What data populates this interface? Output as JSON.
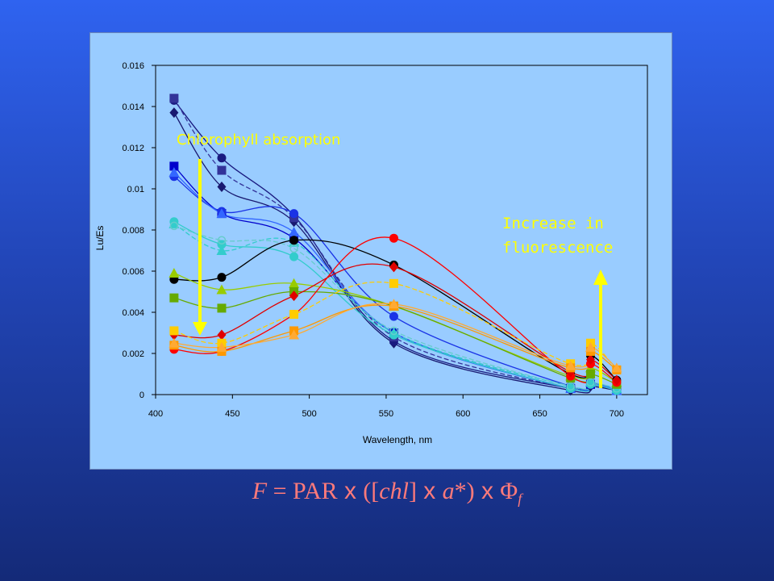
{
  "chart_data": {
    "type": "line",
    "xlabel": "Wavelength, nm",
    "ylabel": "Lu/Es",
    "xlim": [
      400,
      720
    ],
    "ylim": [
      0,
      0.016
    ],
    "xticks": [
      "400",
      "450",
      "500",
      "550",
      "600",
      "650",
      "700"
    ],
    "yticks": [
      "0",
      "0.002",
      "0.004",
      "0.006",
      "0.008",
      "0.01",
      "0.012",
      "0.014",
      "0.016"
    ],
    "grid": false,
    "legend": "none",
    "x": [
      412,
      443,
      490,
      555,
      670,
      683,
      700
    ],
    "series": [
      {
        "color": "#191970",
        "marker": "diamond",
        "dash": false,
        "values": [
          0.0137,
          0.0101,
          0.0084,
          0.0025,
          0.0002,
          0.0004,
          0.0002
        ]
      },
      {
        "color": "#1a1a80",
        "marker": "circle",
        "dash": false,
        "values": [
          0.0143,
          0.0115,
          0.0087,
          0.0026,
          0.0003,
          0.0005,
          0.0002
        ]
      },
      {
        "color": "#333399",
        "marker": "square",
        "dash": true,
        "values": [
          0.0144,
          0.0109,
          0.0086,
          0.0028,
          0.0003,
          0.0005,
          0.0002
        ]
      },
      {
        "color": "#0000cc",
        "marker": "square",
        "dash": false,
        "values": [
          0.0111,
          0.0088,
          0.0076,
          0.003,
          0.0003,
          0.0005,
          0.0002
        ]
      },
      {
        "color": "#1a33e6",
        "marker": "circle",
        "dash": false,
        "values": [
          0.0106,
          0.0089,
          0.0088,
          0.0038,
          0.0004,
          0.0006,
          0.0002
        ]
      },
      {
        "color": "#3366ff",
        "marker": "triangle",
        "dash": false,
        "values": [
          0.0108,
          0.0088,
          0.0079,
          0.003,
          0.0003,
          0.0006,
          0.0002
        ]
      },
      {
        "color": "#33cccc",
        "marker": "circle",
        "dash": false,
        "values": [
          0.0084,
          0.0073,
          0.0067,
          0.0029,
          0.0003,
          0.0005,
          0.0002
        ]
      },
      {
        "color": "#33cccc",
        "marker": "triangle",
        "dash": true,
        "values": [
          0.0083,
          0.007,
          0.0074,
          0.003,
          0.0004,
          0.0006,
          0.0003
        ]
      },
      {
        "color": "#66cccc",
        "marker": "circle-open",
        "dash": true,
        "values": [
          0.0082,
          0.0075,
          0.0071,
          0.0031,
          0.0004,
          0.0006,
          0.0003
        ]
      },
      {
        "color": "#000000",
        "marker": "circle",
        "dash": false,
        "values": [
          0.0056,
          0.0057,
          0.0075,
          0.0063,
          0.001,
          0.0019,
          0.0007
        ]
      },
      {
        "color": "#99cc00",
        "marker": "triangle",
        "dash": false,
        "values": [
          0.0059,
          0.0051,
          0.0054,
          0.0043,
          0.0009,
          0.0013,
          0.0006
        ]
      },
      {
        "color": "#66aa00",
        "marker": "square",
        "dash": false,
        "values": [
          0.0047,
          0.0042,
          0.005,
          0.0043,
          0.0008,
          0.001,
          0.0005
        ]
      },
      {
        "color": "#ff0000",
        "marker": "circle",
        "dash": false,
        "values": [
          0.0022,
          0.0021,
          0.0039,
          0.0076,
          0.0009,
          0.0015,
          0.0006
        ]
      },
      {
        "color": "#e00000",
        "marker": "diamond-down",
        "dash": false,
        "values": [
          0.0029,
          0.0029,
          0.0048,
          0.0062,
          0.0011,
          0.0017,
          0.0007
        ]
      },
      {
        "color": "#ffcc00",
        "marker": "square",
        "dash": true,
        "values": [
          0.0031,
          0.0025,
          0.0039,
          0.0054,
          0.0015,
          0.0025,
          0.0012
        ]
      },
      {
        "color": "#ff9900",
        "marker": "square",
        "dash": false,
        "values": [
          0.0024,
          0.0021,
          0.0031,
          0.0043,
          0.0013,
          0.0021,
          0.0012
        ]
      },
      {
        "color": "#ffaa33",
        "marker": "triangle",
        "dash": false,
        "values": [
          0.0025,
          0.0023,
          0.0029,
          0.0044,
          0.0014,
          0.0023,
          0.0013
        ]
      }
    ],
    "annotations": [
      {
        "text": "Chlorophyll absorption",
        "color": "#ffff00",
        "arrow": "down"
      },
      {
        "text": "Increase in fluorescence",
        "color": "#ffff00",
        "arrow": "up"
      }
    ]
  },
  "annotation_lines": {
    "fluor_line1": "Increase in",
    "fluor_line2": "fluorescence"
  },
  "formula": {
    "F": "F",
    "eq": " = ",
    "par": "PAR",
    "x1": " x ",
    "open": "([",
    "chl": "chl",
    "close1": "]",
    "x2": " x ",
    "a": "a",
    "star": "*)",
    "x3": " x ",
    "phi": "Φ",
    "sub": "f"
  }
}
